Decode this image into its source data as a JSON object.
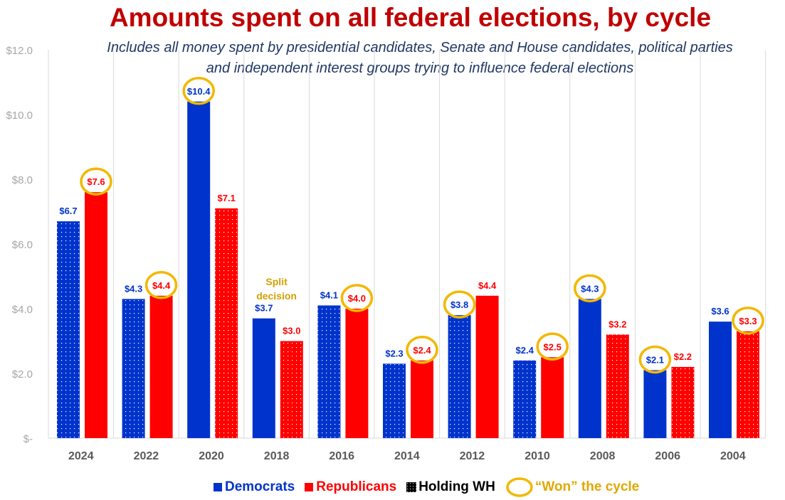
{
  "chart_data": {
    "type": "bar",
    "title": "Amounts spent on all federal elections, by cycle",
    "subtitle": "Includes all money spent by presidential candidates, Senate and House candidates, political parties and independent interest groups trying to influence federal elections",
    "categories": [
      "2024",
      "2022",
      "2020",
      "2018",
      "2016",
      "2014",
      "2012",
      "2010",
      "2008",
      "2006",
      "2004"
    ],
    "series": [
      {
        "name": "Democrats",
        "color": "#0033cc",
        "values": [
          6.7,
          4.3,
          10.4,
          3.7,
          4.1,
          2.3,
          3.8,
          2.4,
          4.3,
          2.1,
          3.6
        ],
        "labels": [
          "$6.7",
          "$4.3",
          "$10.4",
          "$3.7",
          "$4.1",
          "$2.3",
          "$3.8",
          "$2.4",
          "$4.3",
          "$2.1",
          "$3.6"
        ],
        "holding_wh": [
          true,
          true,
          false,
          false,
          true,
          true,
          true,
          true,
          false,
          false,
          false
        ]
      },
      {
        "name": "Republicans",
        "color": "#ff0000",
        "values": [
          7.6,
          4.4,
          7.1,
          3.0,
          4.0,
          2.4,
          4.4,
          2.5,
          3.2,
          2.2,
          3.3
        ],
        "labels": [
          "$7.6",
          "$4.4",
          "$7.1",
          "$3.0",
          "$4.0",
          "$2.4",
          "$4.4",
          "$2.5",
          "$3.2",
          "$2.2",
          "$3.3"
        ],
        "holding_wh": [
          false,
          false,
          true,
          true,
          false,
          false,
          false,
          false,
          true,
          true,
          true
        ]
      }
    ],
    "won_cycle": [
      "Republicans",
      "Republicans",
      "Democrats",
      null,
      "Republicans",
      "Republicans",
      "Democrats",
      "Republicans",
      "Democrats",
      "Democrats",
      "Republicans"
    ],
    "annotation": "Split decision",
    "annotation_category": "2018",
    "ylim": [
      0,
      12
    ],
    "yticks": [
      0,
      2,
      4,
      6,
      8,
      10,
      12
    ],
    "ytick_labels": [
      "$-",
      "$2.0",
      "$4.0",
      "$6.0",
      "$8.0",
      "$10.0",
      "$12.0"
    ],
    "legend_position": "bottom",
    "grid": "vertical separators"
  },
  "legend": {
    "democrats": "Democrats",
    "republicans": "Republicans",
    "holding": "Holding WH",
    "won": "“Won” the cycle"
  },
  "colors": {
    "dem": "#0033cc",
    "rep": "#ff0000",
    "won": "#f2b800",
    "label_gold": "#d4a000"
  }
}
